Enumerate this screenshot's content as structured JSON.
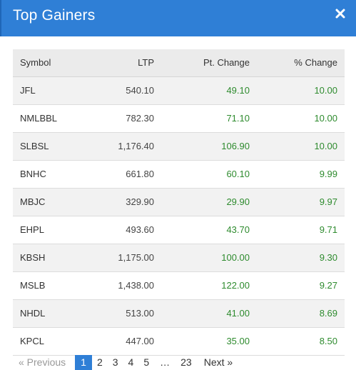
{
  "header": {
    "title": "Top Gainers",
    "close_icon": "close-icon",
    "background": "#2f7fd6"
  },
  "table": {
    "columns": [
      "Symbol",
      "LTP",
      "Pt. Change",
      "% Change"
    ],
    "rows": [
      {
        "symbol": "JFL",
        "ltp": "540.10",
        "pt_change": "49.10",
        "pct_change": "10.00"
      },
      {
        "symbol": "NMLBBL",
        "ltp": "782.30",
        "pt_change": "71.10",
        "pct_change": "10.00"
      },
      {
        "symbol": "SLBSL",
        "ltp": "1,176.40",
        "pt_change": "106.90",
        "pct_change": "10.00"
      },
      {
        "symbol": "BNHC",
        "ltp": "661.80",
        "pt_change": "60.10",
        "pct_change": "9.99"
      },
      {
        "symbol": "MBJC",
        "ltp": "329.90",
        "pt_change": "29.90",
        "pct_change": "9.97"
      },
      {
        "symbol": "EHPL",
        "ltp": "493.60",
        "pt_change": "43.70",
        "pct_change": "9.71"
      },
      {
        "symbol": "KBSH",
        "ltp": "1,175.00",
        "pt_change": "100.00",
        "pct_change": "9.30"
      },
      {
        "symbol": "MSLB",
        "ltp": "1,438.00",
        "pt_change": "122.00",
        "pct_change": "9.27"
      },
      {
        "symbol": "NHDL",
        "ltp": "513.00",
        "pt_change": "41.00",
        "pct_change": "8.69"
      },
      {
        "symbol": "KPCL",
        "ltp": "447.00",
        "pt_change": "35.00",
        "pct_change": "8.50"
      }
    ],
    "positive_color": "#2e8b2e"
  },
  "pagination": {
    "previous": "« Previous",
    "pages": [
      "1",
      "2",
      "3",
      "4",
      "5"
    ],
    "active_page": "1",
    "ellipsis": "…",
    "last_page": "23",
    "next": "Next »"
  }
}
